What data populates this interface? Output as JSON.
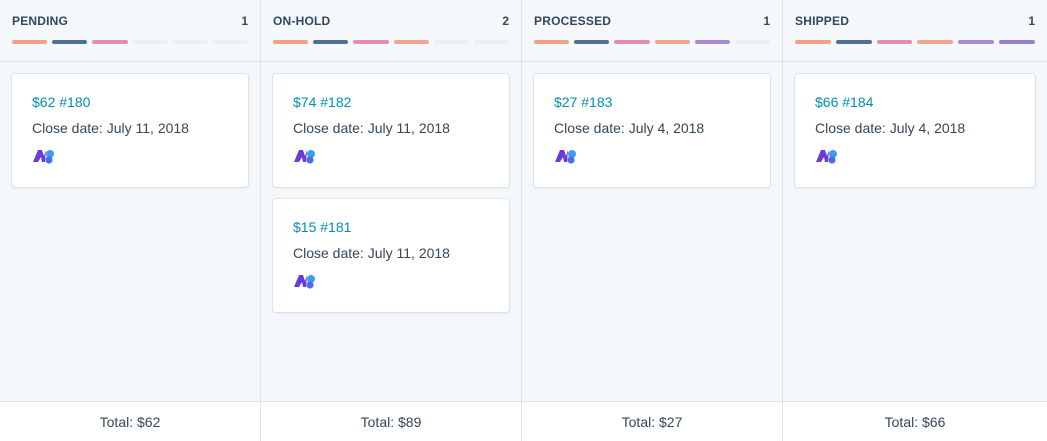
{
  "colors": {
    "seg_1": "#f5a083",
    "seg_2": "#516f90",
    "seg_3": "#e38fac",
    "seg_4": "#f2a48c",
    "seg_5": "#a98ad0",
    "seg_6": "#9b7ec8",
    "seg_empty": "#eaf0f6",
    "link": "#0091ae"
  },
  "columns": [
    {
      "title": "PENDING",
      "count": "1",
      "filled": 3,
      "total_label": "Total: $62",
      "cards": [
        {
          "title": "$62 #180",
          "close_label": "Close date:",
          "close_date": "July 11, 2018",
          "icon": "app-logo-icon"
        }
      ]
    },
    {
      "title": "ON-HOLD",
      "count": "2",
      "filled": 4,
      "total_label": "Total: $89",
      "cards": [
        {
          "title": "$74 #182",
          "close_label": "Close date:",
          "close_date": "July 11, 2018",
          "icon": "app-logo-icon"
        },
        {
          "title": "$15 #181",
          "close_label": "Close date:",
          "close_date": "July 11, 2018",
          "icon": "app-logo-icon"
        }
      ]
    },
    {
      "title": "PROCESSED",
      "count": "1",
      "filled": 5,
      "total_label": "Total: $27",
      "cards": [
        {
          "title": "$27 #183",
          "close_label": "Close date:",
          "close_date": "July 4, 2018",
          "icon": "app-logo-icon"
        }
      ]
    },
    {
      "title": "SHIPPED",
      "count": "1",
      "filled": 6,
      "total_label": "Total: $66",
      "cards": [
        {
          "title": "$66 #184",
          "close_label": "Close date:",
          "close_date": "July 4, 2018",
          "icon": "app-logo-icon"
        }
      ]
    }
  ]
}
